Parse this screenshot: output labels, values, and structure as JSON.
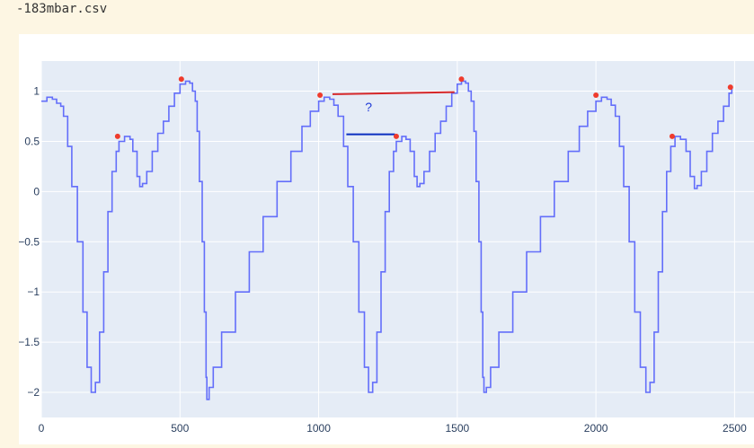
{
  "header": {
    "filename": "-183mbar.csv"
  },
  "chart_data": {
    "type": "line",
    "title": "",
    "xlabel": "",
    "ylabel": "",
    "xlim": [
      0,
      2570
    ],
    "ylim": [
      -2.25,
      1.3
    ],
    "x_ticks": [
      0,
      500,
      1000,
      1500,
      2000,
      2500
    ],
    "x_tick_labels": [
      "0",
      "500",
      "1000",
      "1500",
      "2000",
      "2500"
    ],
    "y_ticks": [
      1,
      0.5,
      0,
      -0.5,
      -1,
      -1.5,
      -2
    ],
    "y_tick_labels": [
      "1",
      "0.5",
      "0",
      "−0.5",
      "−1",
      "−1.5",
      "−2"
    ],
    "grid": true,
    "colors": {
      "plot_bg": "#e5ecf6",
      "grid": "#ffffff",
      "signal": "#636efa",
      "peak_marker": "#ef3b2c",
      "red_line": "#d62728",
      "blue_line": "#0a2ebf",
      "annotation": "#1f3ad6"
    },
    "series": [
      {
        "values_xy": [
          [
            0,
            0.9
          ],
          [
            20,
            0.94
          ],
          [
            40,
            0.92
          ],
          [
            55,
            0.88
          ],
          [
            70,
            0.85
          ],
          [
            80,
            0.75
          ],
          [
            95,
            0.45
          ],
          [
            110,
            0.05
          ],
          [
            130,
            -0.5
          ],
          [
            150,
            -1.2
          ],
          [
            165,
            -1.75
          ],
          [
            180,
            -2.0
          ],
          [
            195,
            -1.9
          ],
          [
            210,
            -1.4
          ],
          [
            225,
            -0.8
          ],
          [
            240,
            -0.2
          ],
          [
            255,
            0.2
          ],
          [
            270,
            0.4
          ],
          [
            280,
            0.5
          ],
          [
            300,
            0.55
          ],
          [
            320,
            0.52
          ],
          [
            330,
            0.4
          ],
          [
            345,
            0.15
          ],
          [
            355,
            0.05
          ],
          [
            365,
            0.08
          ],
          [
            380,
            0.2
          ],
          [
            400,
            0.4
          ],
          [
            420,
            0.58
          ],
          [
            440,
            0.7
          ],
          [
            460,
            0.85
          ],
          [
            480,
            0.98
          ],
          [
            500,
            1.07
          ],
          [
            520,
            1.1
          ],
          [
            535,
            1.08
          ],
          [
            545,
            1.0
          ],
          [
            555,
            0.9
          ],
          [
            562,
            0.6
          ],
          [
            570,
            0.1
          ],
          [
            580,
            -0.5
          ],
          [
            588,
            -1.2
          ],
          [
            594,
            -1.85
          ],
          [
            597,
            -2.07
          ],
          [
            605,
            -1.95
          ],
          [
            620,
            -1.75
          ],
          [
            650,
            -1.4
          ],
          [
            700,
            -1.0
          ],
          [
            750,
            -0.6
          ],
          [
            800,
            -0.25
          ],
          [
            850,
            0.1
          ],
          [
            900,
            0.4
          ],
          [
            940,
            0.65
          ],
          [
            970,
            0.8
          ],
          [
            1000,
            0.9
          ],
          [
            1020,
            0.94
          ],
          [
            1040,
            0.92
          ],
          [
            1055,
            0.86
          ],
          [
            1070,
            0.75
          ],
          [
            1090,
            0.45
          ],
          [
            1105,
            0.05
          ],
          [
            1125,
            -0.5
          ],
          [
            1145,
            -1.2
          ],
          [
            1165,
            -1.75
          ],
          [
            1180,
            -2.0
          ],
          [
            1195,
            -1.9
          ],
          [
            1210,
            -1.4
          ],
          [
            1225,
            -0.8
          ],
          [
            1240,
            -0.2
          ],
          [
            1255,
            0.2
          ],
          [
            1270,
            0.4
          ],
          [
            1280,
            0.5
          ],
          [
            1300,
            0.55
          ],
          [
            1315,
            0.52
          ],
          [
            1330,
            0.4
          ],
          [
            1345,
            0.15
          ],
          [
            1355,
            0.05
          ],
          [
            1365,
            0.08
          ],
          [
            1380,
            0.2
          ],
          [
            1400,
            0.4
          ],
          [
            1420,
            0.58
          ],
          [
            1440,
            0.7
          ],
          [
            1460,
            0.85
          ],
          [
            1480,
            0.98
          ],
          [
            1500,
            1.07
          ],
          [
            1515,
            1.1
          ],
          [
            1530,
            1.08
          ],
          [
            1540,
            1.0
          ],
          [
            1550,
            0.9
          ],
          [
            1560,
            0.6
          ],
          [
            1568,
            0.1
          ],
          [
            1578,
            -0.5
          ],
          [
            1586,
            -1.2
          ],
          [
            1592,
            -1.85
          ],
          [
            1596,
            -2.0
          ],
          [
            1605,
            -1.95
          ],
          [
            1620,
            -1.75
          ],
          [
            1650,
            -1.4
          ],
          [
            1700,
            -1.0
          ],
          [
            1750,
            -0.6
          ],
          [
            1800,
            -0.25
          ],
          [
            1850,
            0.1
          ],
          [
            1900,
            0.4
          ],
          [
            1940,
            0.65
          ],
          [
            1970,
            0.8
          ],
          [
            2000,
            0.9
          ],
          [
            2020,
            0.94
          ],
          [
            2040,
            0.92
          ],
          [
            2055,
            0.86
          ],
          [
            2070,
            0.75
          ],
          [
            2085,
            0.45
          ],
          [
            2100,
            0.05
          ],
          [
            2120,
            -0.5
          ],
          [
            2140,
            -1.2
          ],
          [
            2160,
            -1.75
          ],
          [
            2180,
            -2.0
          ],
          [
            2195,
            -1.9
          ],
          [
            2210,
            -1.4
          ],
          [
            2225,
            -0.8
          ],
          [
            2240,
            -0.2
          ],
          [
            2255,
            0.2
          ],
          [
            2270,
            0.45
          ],
          [
            2285,
            0.55
          ],
          [
            2305,
            0.52
          ],
          [
            2325,
            0.4
          ],
          [
            2340,
            0.15
          ],
          [
            2355,
            0.03
          ],
          [
            2365,
            0.06
          ],
          [
            2380,
            0.2
          ],
          [
            2400,
            0.4
          ],
          [
            2420,
            0.58
          ],
          [
            2440,
            0.7
          ],
          [
            2460,
            0.85
          ],
          [
            2480,
            0.98
          ],
          [
            2490,
            1.03
          ]
        ]
      }
    ],
    "peaks": [
      [
        275,
        0.55
      ],
      [
        505,
        1.12
      ],
      [
        1005,
        0.96
      ],
      [
        1280,
        0.55
      ],
      [
        1515,
        1.12
      ],
      [
        2000,
        0.96
      ],
      [
        2275,
        0.55
      ],
      [
        2485,
        1.04
      ]
    ],
    "annotations": {
      "red_line": [
        [
          1050,
          0.97
        ],
        [
          1490,
          0.99
        ]
      ],
      "blue_line": [
        [
          1100,
          0.57
        ],
        [
          1275,
          0.57
        ]
      ],
      "question": {
        "x": 1180,
        "y": 0.8,
        "text": "?"
      }
    }
  }
}
